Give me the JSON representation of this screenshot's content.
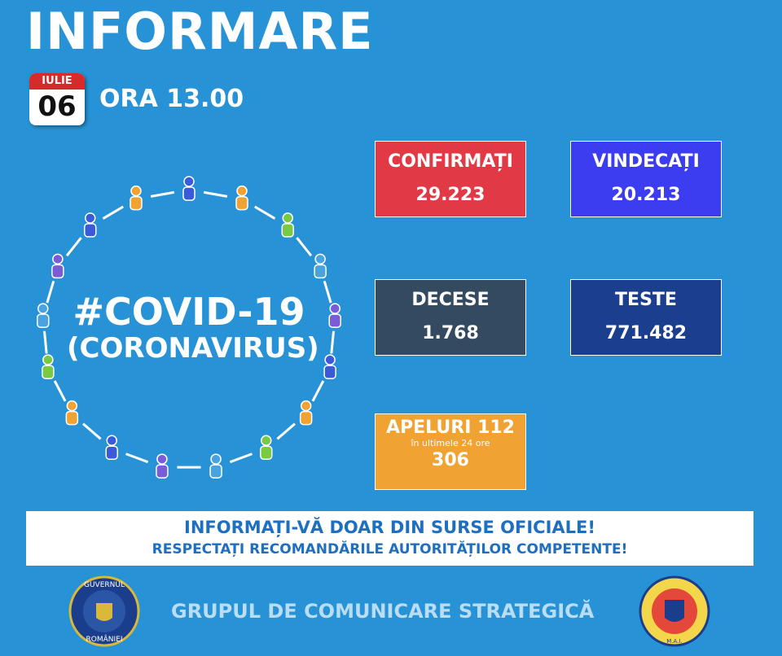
{
  "header": {
    "title": "INFORMARE",
    "month": "IULIE",
    "day": "06",
    "time": "ORA 13.00"
  },
  "emblem": {
    "line1": "#COVID-19",
    "line2": "(CORONAVIRUS)"
  },
  "stats": [
    {
      "label": "CONFIRMAȚI",
      "value": "29.223"
    },
    {
      "label": "VINDECAȚI",
      "value": "20.213"
    },
    {
      "label": "DECESE",
      "value": "1.768"
    },
    {
      "label": "TESTE",
      "value": "771.482"
    },
    {
      "label": "APELURI 112",
      "note": "în ultimele 24 ore",
      "value": "306"
    }
  ],
  "banner": {
    "line1": "INFORMAȚI-VĂ DOAR DIN SURSE OFICIALE!",
    "line2": "RESPECTAȚI RECOMANDĂRILE AUTORITĂȚILOR COMPETENTE!"
  },
  "footer": {
    "text": "GRUPUL DE COMUNICARE STRATEGICĂ",
    "left_seal_top": "GUVERNUL",
    "left_seal_bottom": "ROMÂNIEI",
    "right_seal": "M.A.I."
  }
}
